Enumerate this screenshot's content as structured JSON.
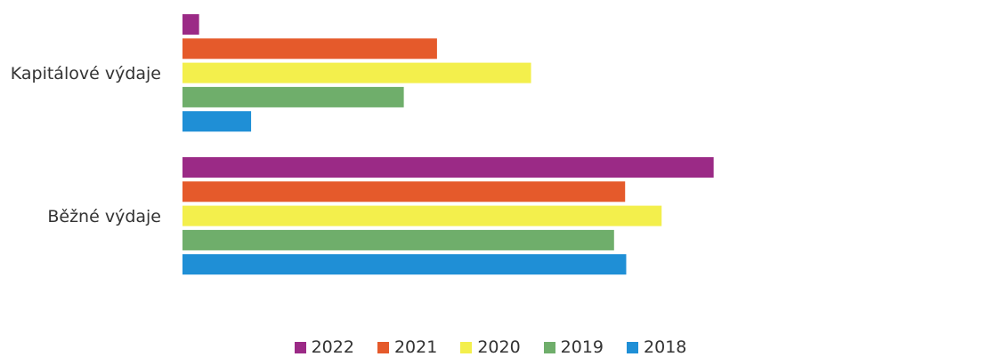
{
  "chart_data": {
    "type": "bar",
    "orientation": "horizontal",
    "categories": [
      "Kapitálové výdaje",
      "Běžné výdaje"
    ],
    "series": [
      {
        "name": "2022",
        "color": "#9b2a86",
        "values": [
          1.5,
          48
        ]
      },
      {
        "name": "2021",
        "color": "#e55a2b",
        "values": [
          23,
          40
        ]
      },
      {
        "name": "2020",
        "color": "#f3ef4c",
        "values": [
          31.5,
          43.3
        ]
      },
      {
        "name": "2019",
        "color": "#6fae6b",
        "values": [
          20,
          39
        ]
      },
      {
        "name": "2018",
        "color": "#1f8fd6",
        "values": [
          6.2,
          40.1
        ]
      }
    ],
    "xlim": [
      0,
      72
    ],
    "grid": false,
    "legend_position": "bottom"
  }
}
